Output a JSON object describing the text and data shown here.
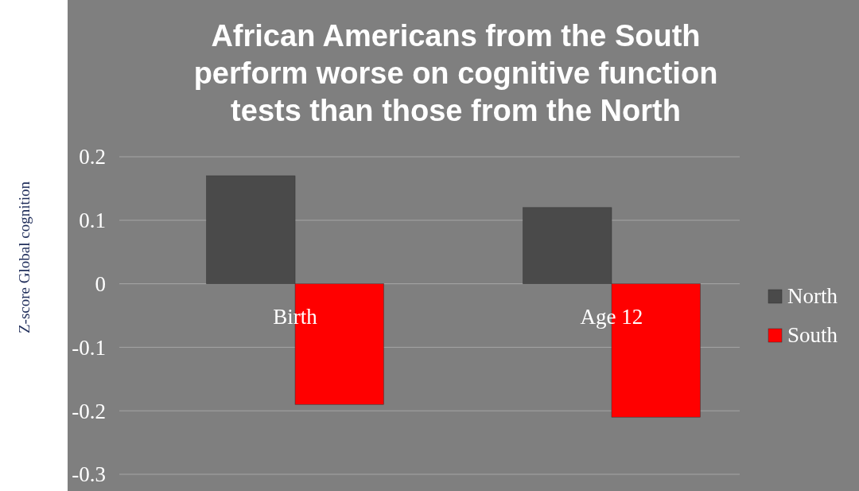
{
  "chart_data": {
    "type": "bar",
    "title": "African Americans from the South perform worse on cognitive function tests than those from the North",
    "ylabel": "Z-score Global cognition",
    "categories": [
      "Birth",
      "Age 12"
    ],
    "series": [
      {
        "name": "North",
        "color": "#4a4a4a",
        "values": [
          0.17,
          0.12
        ]
      },
      {
        "name": "South",
        "color": "#ff0000",
        "values": [
          -0.19,
          -0.21
        ]
      }
    ],
    "ylim": [
      -0.3,
      0.2
    ],
    "yticks": [
      -0.3,
      -0.2,
      -0.1,
      0,
      0.1,
      0.2
    ],
    "grid": "y",
    "legend": "right"
  }
}
